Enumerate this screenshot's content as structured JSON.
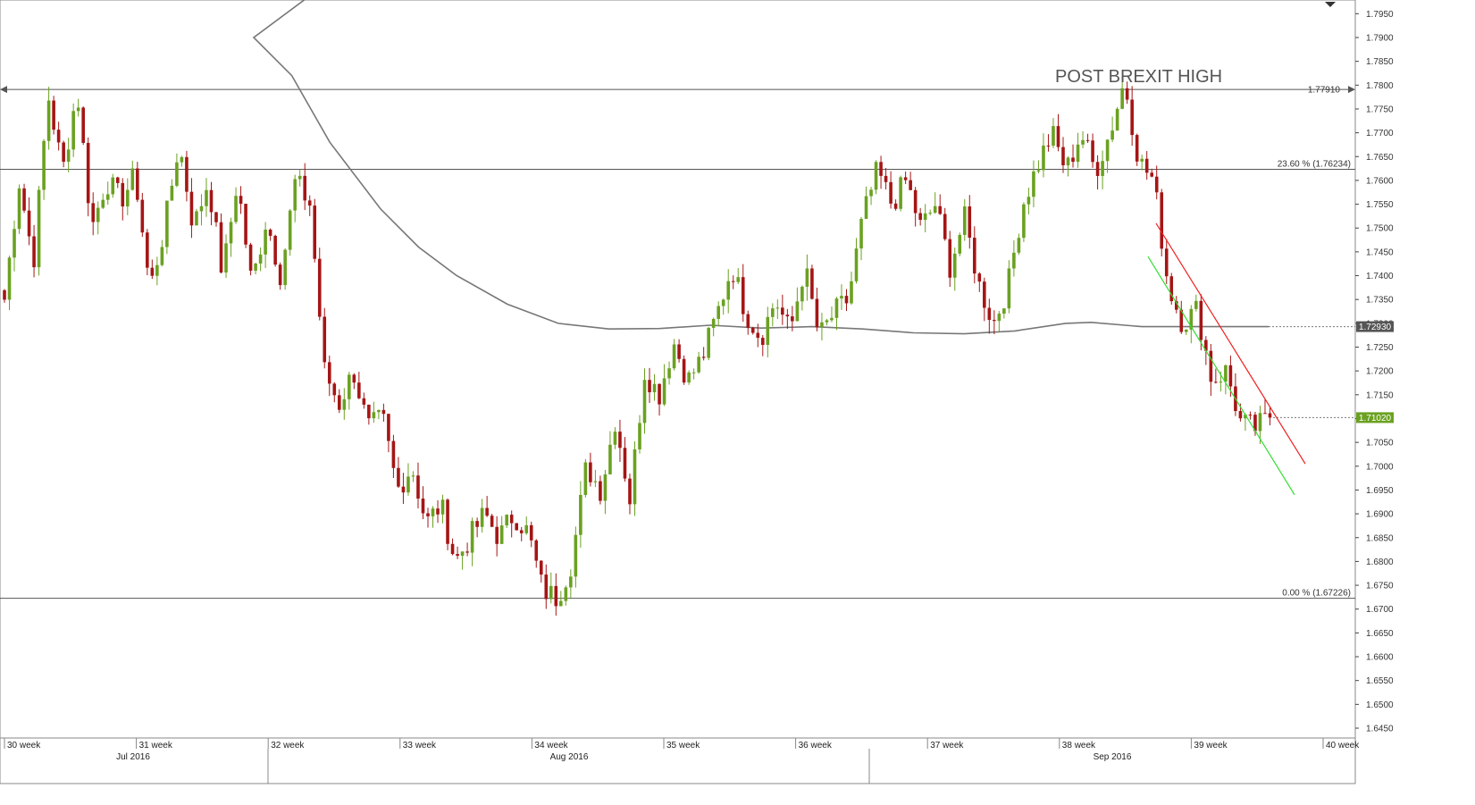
{
  "chart_data": {
    "type": "candlestick",
    "title": "",
    "ylim": [
      1.645,
      1.7975
    ],
    "grid": false,
    "y_ticks": [
      "1.7950",
      "1.7900",
      "1.7850",
      "1.7800",
      "1.7750",
      "1.7700",
      "1.7650",
      "1.7600",
      "1.7550",
      "1.7500",
      "1.7450",
      "1.7400",
      "1.7350",
      "1.7300",
      "1.7250",
      "1.7200",
      "1.7150",
      "1.7100",
      "1.7050",
      "1.7000",
      "1.6950",
      "1.6900",
      "1.6850",
      "1.6800",
      "1.6750",
      "1.6700",
      "1.6650",
      "1.6600",
      "1.6550",
      "1.6500",
      "1.6450"
    ],
    "week_labels": [
      "30 week",
      "31 week",
      "32 week",
      "33 week",
      "34 week",
      "35 week",
      "36 week",
      "37 week",
      "38 week",
      "39 week",
      "40 week"
    ],
    "month_labels": [
      "Jul 2016",
      "Aug 2016",
      "Sep 2016"
    ],
    "levels": {
      "high": {
        "value": 1.7791,
        "label": "1.77910"
      },
      "fib_23_6": {
        "value": 1.76234,
        "label": "23.60 % (1.76234)"
      },
      "fib_0": {
        "value": 1.67226,
        "label": "0.00 % (1.67226)"
      }
    },
    "badges": {
      "moving_average": {
        "value": 1.7293,
        "label": "1.72930",
        "color": "#555555"
      },
      "last_price": {
        "value": 1.7102,
        "label": "1.71020",
        "color": "#6aa121"
      }
    },
    "annotation": "POST BREXIT HIGH",
    "candle_path": [
      1.735,
      1.76,
      1.743,
      1.778,
      1.762,
      1.779,
      1.75,
      1.76,
      1.756,
      1.761,
      1.737,
      1.75,
      1.768,
      1.75,
      1.76,
      1.74,
      1.76,
      1.738,
      1.752,
      1.74,
      1.76,
      1.755,
      1.72,
      1.713,
      1.72,
      1.708,
      1.71,
      1.695,
      1.7,
      1.688,
      1.692,
      1.68,
      1.685,
      1.69,
      1.685,
      1.69,
      1.686,
      1.674,
      1.6723,
      1.68,
      1.7,
      1.695,
      1.71,
      1.693,
      1.72,
      1.715,
      1.726,
      1.718,
      1.723,
      1.732,
      1.742,
      1.732,
      1.727,
      1.735,
      1.728,
      1.742,
      1.727,
      1.732,
      1.735,
      1.752,
      1.762,
      1.755,
      1.76,
      1.75,
      1.755,
      1.742,
      1.752,
      1.738,
      1.73,
      1.738,
      1.755,
      1.763,
      1.77,
      1.762,
      1.77,
      1.762,
      1.77,
      1.781,
      1.764,
      1.76,
      1.738,
      1.73,
      1.733,
      1.718,
      1.72,
      1.709,
      1.708,
      1.7102
    ],
    "moving_average": [
      {
        "t": 0.17,
        "v": 1.798
      },
      {
        "t": 0.2,
        "v": 1.79
      },
      {
        "t": 0.23,
        "v": 1.782
      },
      {
        "t": 0.26,
        "v": 1.768
      },
      {
        "t": 0.3,
        "v": 1.754
      },
      {
        "t": 0.33,
        "v": 1.746
      },
      {
        "t": 0.36,
        "v": 1.74
      },
      {
        "t": 0.4,
        "v": 1.734
      },
      {
        "t": 0.44,
        "v": 1.73
      },
      {
        "t": 0.48,
        "v": 1.7288
      },
      {
        "t": 0.52,
        "v": 1.7289
      },
      {
        "t": 0.56,
        "v": 1.7296
      },
      {
        "t": 0.6,
        "v": 1.729
      },
      {
        "t": 0.64,
        "v": 1.7293
      },
      {
        "t": 0.68,
        "v": 1.7288
      },
      {
        "t": 0.72,
        "v": 1.728
      },
      {
        "t": 0.76,
        "v": 1.7278
      },
      {
        "t": 0.8,
        "v": 1.7284
      },
      {
        "t": 0.84,
        "v": 1.73
      },
      {
        "t": 0.86,
        "v": 1.7302
      },
      {
        "t": 0.9,
        "v": 1.7293
      },
      {
        "t": 0.94,
        "v": 1.7293
      },
      {
        "t": 1.0,
        "v": 1.7293
      }
    ],
    "channel": {
      "upper": {
        "color": "#ee2222",
        "from": 1.751,
        "to": 1.7005
      },
      "lower": {
        "color": "#33dd33",
        "from": 1.744,
        "to": 1.694
      }
    },
    "colors": {
      "bull": "#6aa121",
      "bear": "#a51515",
      "ma": "#777777",
      "axis": "#444444"
    }
  }
}
